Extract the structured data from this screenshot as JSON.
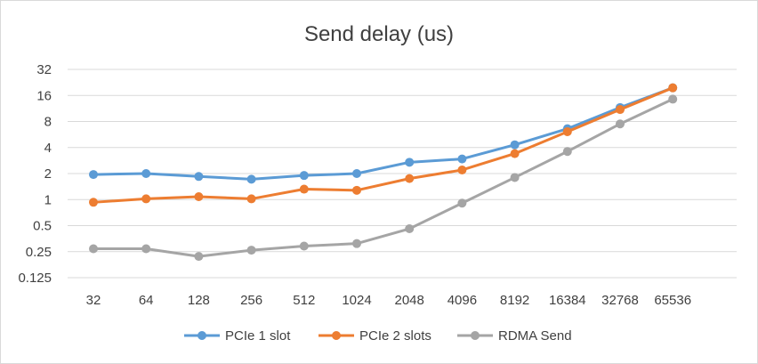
{
  "chart_data": {
    "type": "line",
    "title": "Send delay (us)",
    "xlabel": "",
    "ylabel": "",
    "y_scale": "log2",
    "ylim": [
      0.125,
      32
    ],
    "y_ticks": [
      "0.125",
      "0.25",
      "0.5",
      "1",
      "2",
      "4",
      "8",
      "16",
      "32"
    ],
    "categories": [
      "32",
      "64",
      "128",
      "256",
      "512",
      "1024",
      "2048",
      "4096",
      "8192",
      "16384",
      "32768",
      "65536"
    ],
    "grid": "horizontal",
    "legend": "bottom",
    "series": [
      {
        "name": "PCIe 1 slot",
        "color": "#5b9bd5",
        "values": [
          1.95,
          2.0,
          1.85,
          1.72,
          1.9,
          2.0,
          2.7,
          2.95,
          4.3,
          6.6,
          11.6,
          19.6
        ]
      },
      {
        "name": "PCIe 2 slots",
        "color": "#ed7d31",
        "values": [
          0.93,
          1.02,
          1.08,
          1.02,
          1.32,
          1.28,
          1.75,
          2.2,
          3.4,
          6.1,
          11.0,
          19.6
        ]
      },
      {
        "name": "RDMA Send",
        "color": "#a5a5a5",
        "values": [
          0.27,
          0.27,
          0.22,
          0.26,
          0.29,
          0.31,
          0.46,
          0.91,
          1.8,
          3.6,
          7.5,
          14.5
        ]
      }
    ]
  }
}
